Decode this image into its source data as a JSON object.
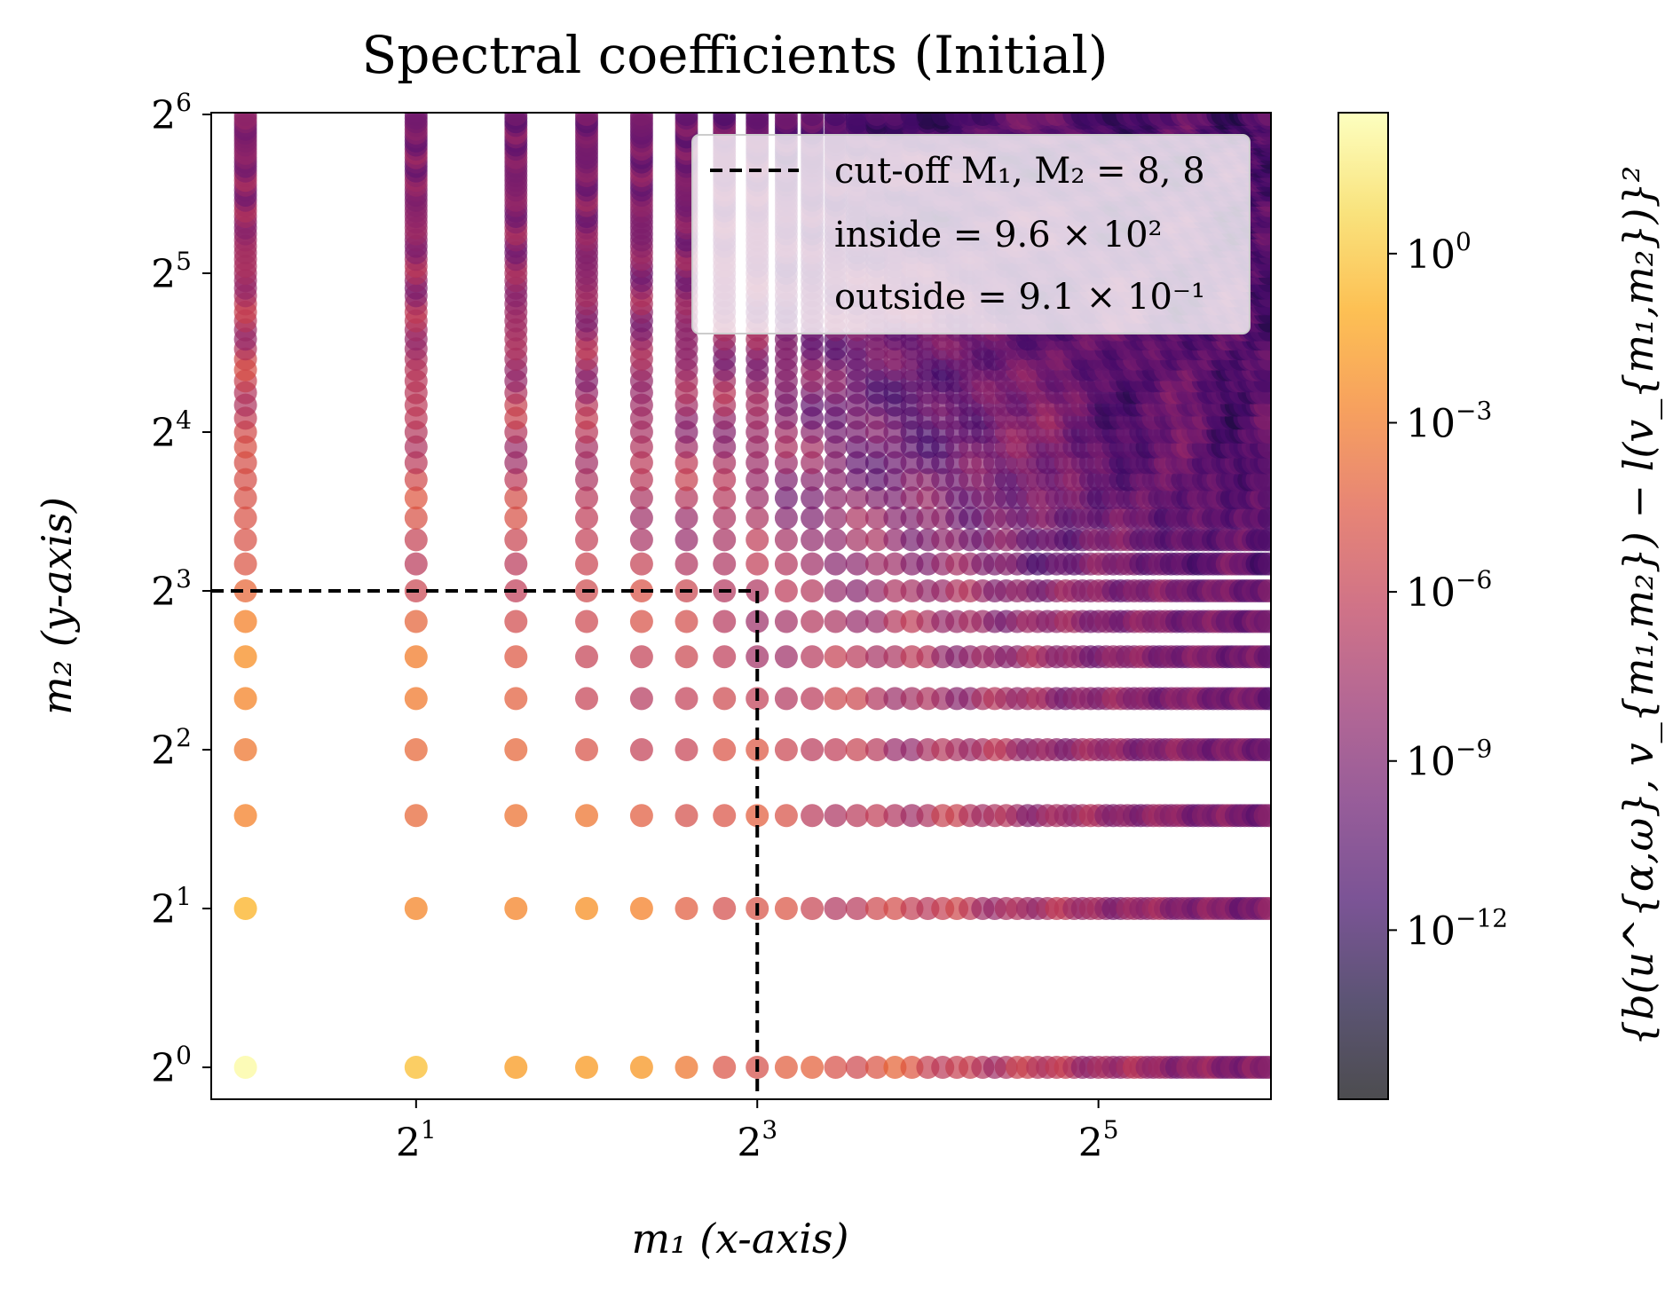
{
  "chart_data": {
    "type": "scatter",
    "title": "Spectral coefficients (Initial)",
    "xlabel": "m₁  (x-axis)",
    "ylabel": "m₂  (y-axis)",
    "colorbar_label": "{b(u^{α,ω}, v_{m₁,m₂}) − l(v_{m₁,m₂})}²",
    "x_scale": "log2",
    "y_scale": "log2",
    "xlim": [
      0.87,
      64.5
    ],
    "ylim": [
      0.87,
      64.5
    ],
    "x_ticks": [
      {
        "base": "2",
        "exp": "1",
        "value": 2
      },
      {
        "base": "2",
        "exp": "3",
        "value": 8
      },
      {
        "base": "2",
        "exp": "5",
        "value": 32
      }
    ],
    "y_ticks": [
      {
        "base": "2",
        "exp": "0",
        "value": 1
      },
      {
        "base": "2",
        "exp": "1",
        "value": 2
      },
      {
        "base": "2",
        "exp": "2",
        "value": 4
      },
      {
        "base": "2",
        "exp": "3",
        "value": 8
      },
      {
        "base": "2",
        "exp": "4",
        "value": 16
      },
      {
        "base": "2",
        "exp": "5",
        "value": 32
      },
      {
        "base": "2",
        "exp": "6",
        "value": 64
      }
    ],
    "grid": false,
    "m1_range": [
      1,
      64
    ],
    "m2_range": [
      1,
      64
    ],
    "colormap": "inferno",
    "colorbar_ticks": [
      {
        "base": "10",
        "exp": "0",
        "value": 0
      },
      {
        "base": "10",
        "exp": "−3",
        "value": -3
      },
      {
        "base": "10",
        "exp": "−6",
        "value": -6
      },
      {
        "base": "10",
        "exp": "−9",
        "value": -9
      },
      {
        "base": "10",
        "exp": "−12",
        "value": -12
      }
    ],
    "colorbar_range_log10": [
      -15,
      2.5
    ],
    "cutoff": {
      "M1": 8,
      "M2": 8
    },
    "legend": {
      "placement": "top-right",
      "entries": [
        "cut-off M₁, M₂ = 8, 8",
        "inside = 9.6 × 10²",
        "outside = 9.1 × 10⁻¹"
      ]
    },
    "colors": {
      "cutoff_line": "#000000",
      "legend_bg": "rgba(255,255,255,0.8)"
    }
  }
}
